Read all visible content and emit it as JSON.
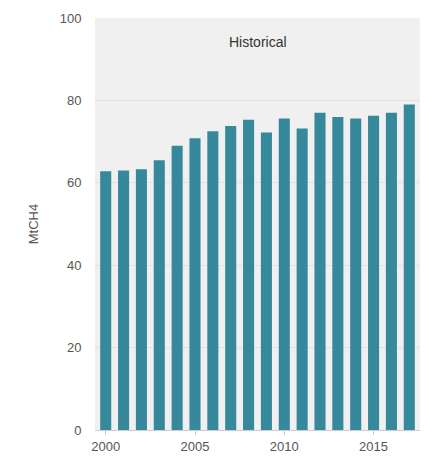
{
  "chart_data": {
    "type": "bar",
    "annotation": "Historical",
    "y_label": "MtCH4",
    "x": [
      2000,
      2001,
      2002,
      2003,
      2004,
      2005,
      2006,
      2007,
      2008,
      2009,
      2010,
      2011,
      2012,
      2013,
      2014,
      2015,
      2016,
      2017
    ],
    "values": [
      62.8,
      63.0,
      63.3,
      65.5,
      69.0,
      70.8,
      72.5,
      73.8,
      75.3,
      72.2,
      75.6,
      73.2,
      77.0,
      76.0,
      75.6,
      76.3,
      77.0,
      79.0
    ],
    "color": "#35899a",
    "xlim": [
      1999.4,
      2017.6
    ],
    "xticks": [
      2000,
      2005,
      2010,
      2015
    ],
    "ylim": [
      0,
      100
    ],
    "yticks": [
      0,
      20,
      40,
      60,
      80,
      100
    ],
    "grid": true
  }
}
